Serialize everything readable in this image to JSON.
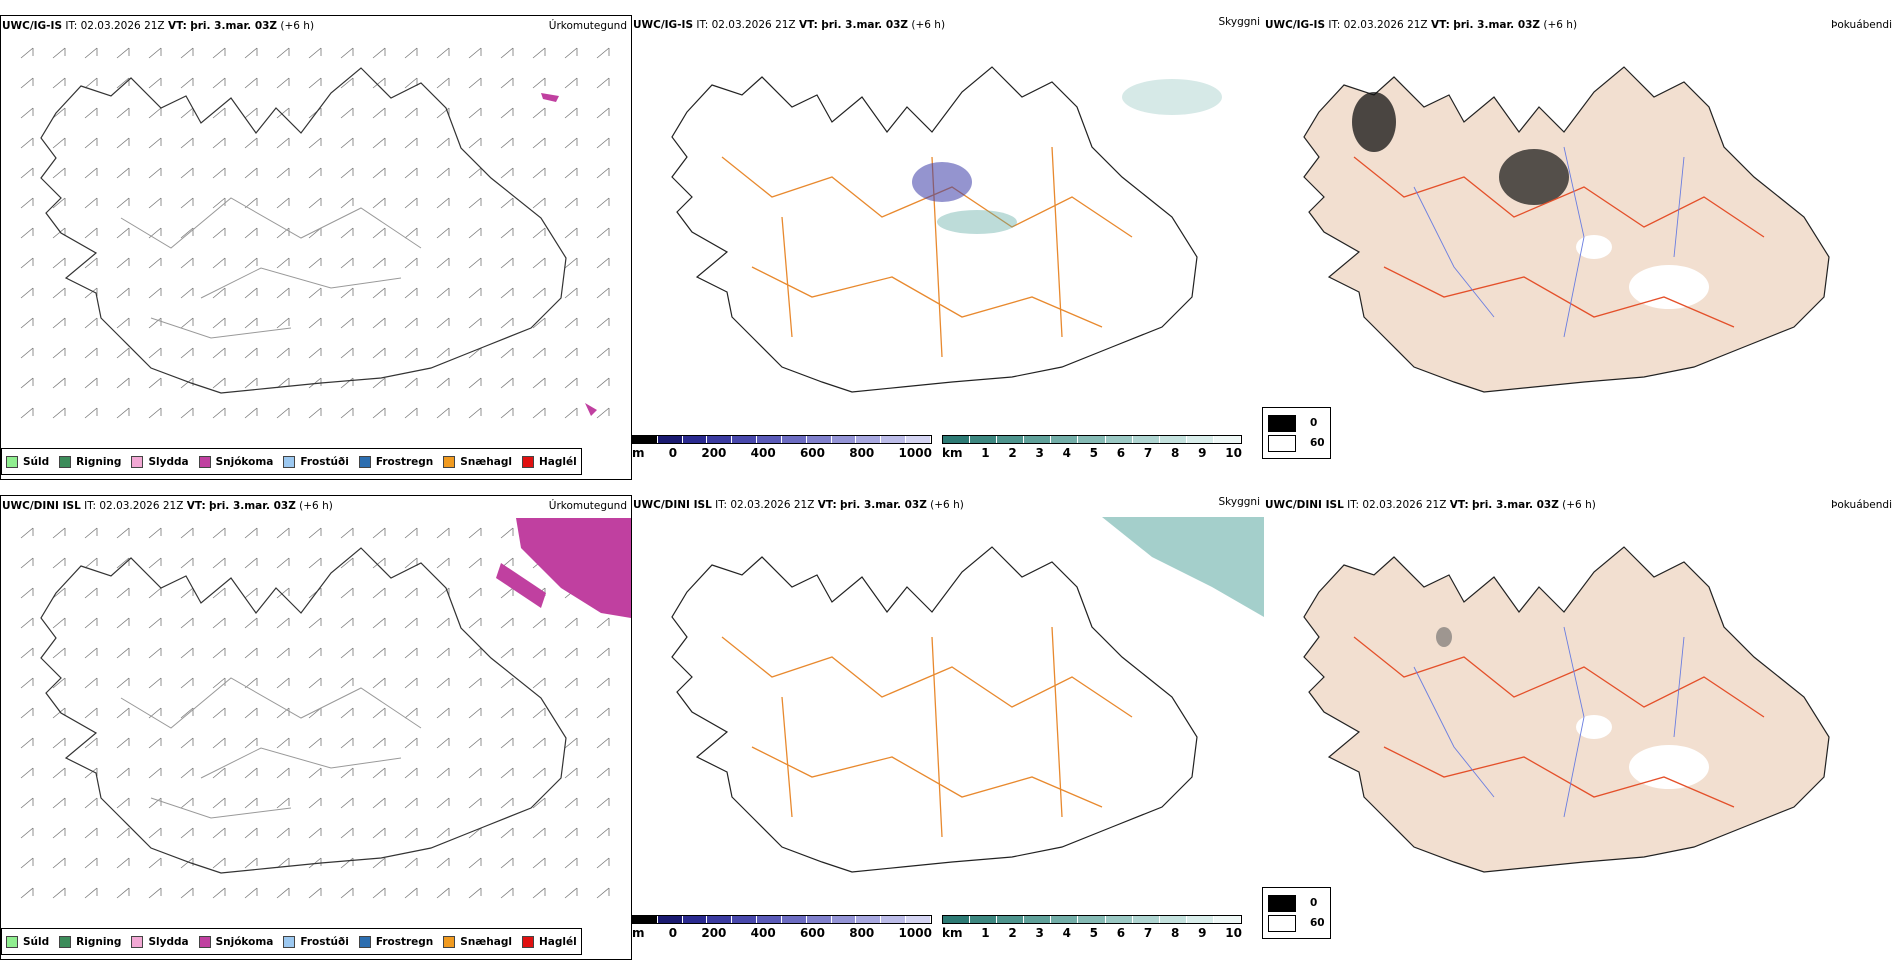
{
  "rows": [
    {
      "model": "UWC/IG-IS",
      "it_label": "IT:",
      "it_value": "02.03.2026 21Z",
      "vt_label": "VT:",
      "vt_value": "þri. 3.mar. 03Z",
      "lead": "(+6 h)",
      "titles": {
        "precip": "Úrkomutegund",
        "cloud": "Skyggni",
        "fog": "Þokuábendi"
      }
    },
    {
      "model": "UWC/DINI ISL",
      "it_label": "IT:",
      "it_value": "02.03.2026 21Z",
      "vt_label": "VT:",
      "vt_value": "þri. 3.mar. 03Z",
      "lead": "(+6 h)",
      "titles": {
        "precip": "Úrkomutegund",
        "cloud": "Skyggni",
        "fog": "Þokuábendi"
      }
    }
  ],
  "precip_legend": [
    {
      "label": "Súld",
      "color": "#90ee90"
    },
    {
      "label": "Rigning",
      "color": "#3c8c5a"
    },
    {
      "label": "Slydda",
      "color": "#f2a8d4"
    },
    {
      "label": "Snjókoma",
      "color": "#c040a0"
    },
    {
      "label": "Frostúði",
      "color": "#9cc8f0"
    },
    {
      "label": "Frostregn",
      "color": "#2c6eb0"
    },
    {
      "label": "Snæhagl",
      "color": "#f09a20"
    },
    {
      "label": "Haglél",
      "color": "#e01010"
    }
  ],
  "ceiling_bar": {
    "unit": "m",
    "ticks": [
      "0",
      "200",
      "400",
      "600",
      "800",
      "1000"
    ],
    "colors": [
      "#000000",
      "#1a1a70",
      "#2a2a90",
      "#3b3ba0",
      "#4848ac",
      "#5a5ab8",
      "#6c6cc2",
      "#8080cc",
      "#9494d6",
      "#a8a8e0",
      "#bcbce8",
      "#d4d4f2"
    ]
  },
  "visibility_bar": {
    "unit": "km",
    "ticks": [
      "1",
      "2",
      "3",
      "4",
      "5",
      "6",
      "7",
      "8",
      "9",
      "10"
    ],
    "colors": [
      "#2d7a74",
      "#3d8780",
      "#4e948d",
      "#60a19a",
      "#73aea8",
      "#86bbb5",
      "#9ac8c3",
      "#afd5d1",
      "#c4e2de",
      "#d9eeeb",
      "#eef8f6"
    ]
  },
  "fog_key": [
    {
      "label": "0",
      "color": "#000000"
    },
    {
      "label": "60",
      "color": "#ffffff"
    }
  ],
  "colors": {
    "roads": "#e8892e",
    "roads_fog": "#e4502a",
    "rivers": "#6a7de0",
    "land_fog": "#f2dfd0",
    "snow": "#c040a0",
    "low_cloud": "#3d3da8",
    "visibility": "#5aa8a0"
  }
}
